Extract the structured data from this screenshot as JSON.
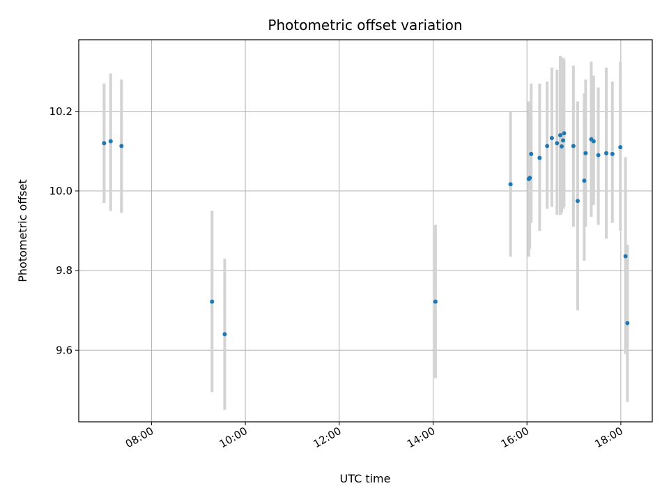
{
  "chart_data": {
    "type": "scatter",
    "title": "Photometric offset variation",
    "xlabel": "UTC time",
    "ylabel": "Photometric offset",
    "x_unit": "hours UTC",
    "xlim": [
      6.45,
      18.67
    ],
    "ylim": [
      9.42,
      10.38
    ],
    "x_ticks": [
      {
        "value": 8,
        "label": "08:00"
      },
      {
        "value": 10,
        "label": "10:00"
      },
      {
        "value": 12,
        "label": "12:00"
      },
      {
        "value": 14,
        "label": "14:00"
      },
      {
        "value": 16,
        "label": "16:00"
      },
      {
        "value": 18,
        "label": "18:00"
      }
    ],
    "y_ticks": [
      {
        "value": 9.6,
        "label": "9.6"
      },
      {
        "value": 9.8,
        "label": "9.8"
      },
      {
        "value": 10.0,
        "label": "10.0"
      },
      {
        "value": 10.2,
        "label": "10.2"
      }
    ],
    "grid": true,
    "marker_color": "#1f77b4",
    "errorbar_color": "#d3d3d3",
    "points": [
      {
        "x": 6.99,
        "y": 10.12,
        "low": 9.97,
        "high": 10.27
      },
      {
        "x": 7.13,
        "y": 10.125,
        "low": 9.95,
        "high": 10.295
      },
      {
        "x": 7.36,
        "y": 10.113,
        "low": 9.945,
        "high": 10.28
      },
      {
        "x": 9.29,
        "y": 9.722,
        "low": 9.495,
        "high": 9.95
      },
      {
        "x": 9.56,
        "y": 9.64,
        "low": 9.45,
        "high": 9.83
      },
      {
        "x": 14.05,
        "y": 9.722,
        "low": 9.53,
        "high": 9.915
      },
      {
        "x": 15.65,
        "y": 10.017,
        "low": 9.835,
        "high": 10.2
      },
      {
        "x": 16.04,
        "y": 10.03,
        "low": 9.835,
        "high": 10.225
      },
      {
        "x": 16.06,
        "y": 10.033,
        "low": 9.855,
        "high": 10.21
      },
      {
        "x": 16.09,
        "y": 10.093,
        "low": 9.92,
        "high": 10.27
      },
      {
        "x": 16.27,
        "y": 10.083,
        "low": 9.9,
        "high": 10.27
      },
      {
        "x": 16.43,
        "y": 10.113,
        "low": 9.955,
        "high": 10.275
      },
      {
        "x": 16.53,
        "y": 10.133,
        "low": 9.96,
        "high": 10.31
      },
      {
        "x": 16.64,
        "y": 10.12,
        "low": 9.94,
        "high": 10.305
      },
      {
        "x": 16.71,
        "y": 10.14,
        "low": 9.94,
        "high": 10.34
      },
      {
        "x": 16.74,
        "y": 10.112,
        "low": 9.945,
        "high": 10.285
      },
      {
        "x": 16.77,
        "y": 10.127,
        "low": 9.955,
        "high": 10.335
      },
      {
        "x": 16.79,
        "y": 10.145,
        "low": 9.96,
        "high": 10.33
      },
      {
        "x": 16.99,
        "y": 10.113,
        "low": 9.91,
        "high": 10.315
      },
      {
        "x": 17.08,
        "y": 9.975,
        "low": 9.7,
        "high": 10.225
      },
      {
        "x": 17.22,
        "y": 10.026,
        "low": 9.825,
        "high": 10.245
      },
      {
        "x": 17.25,
        "y": 10.095,
        "low": 9.91,
        "high": 10.28
      },
      {
        "x": 17.37,
        "y": 10.13,
        "low": 9.935,
        "high": 10.325
      },
      {
        "x": 17.42,
        "y": 10.125,
        "low": 9.965,
        "high": 10.29
      },
      {
        "x": 17.52,
        "y": 10.09,
        "low": 9.915,
        "high": 10.26
      },
      {
        "x": 17.69,
        "y": 10.095,
        "low": 9.88,
        "high": 10.31
      },
      {
        "x": 17.82,
        "y": 10.093,
        "low": 9.92,
        "high": 10.275
      },
      {
        "x": 17.99,
        "y": 10.11,
        "low": 9.9,
        "high": 10.325
      },
      {
        "x": 18.1,
        "y": 9.836,
        "low": 9.59,
        "high": 10.085
      },
      {
        "x": 18.14,
        "y": 9.668,
        "low": 9.47,
        "high": 9.865
      }
    ]
  }
}
